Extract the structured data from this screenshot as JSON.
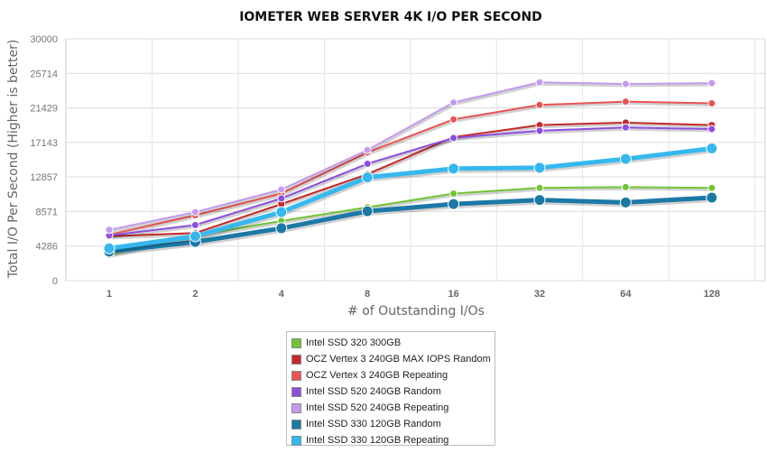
{
  "chart_data": {
    "type": "line",
    "title": "IOMETER WEB SERVER 4K I/O PER SECOND",
    "xlabel": "# of Outstanding I/Os",
    "ylabel": "Total I/O Per Second (Higher is better)",
    "categories": [
      "1",
      "2",
      "4",
      "8",
      "16",
      "32",
      "64",
      "128"
    ],
    "yticks": [
      "0",
      "4286",
      "8571",
      "12857",
      "17143",
      "21429",
      "25714",
      "30000"
    ],
    "ylim": [
      0,
      30000
    ],
    "grid": true,
    "legend_position": "bottom",
    "series": [
      {
        "name": "Intel SSD 320 300GB",
        "color": "#72c434",
        "emphasis": false,
        "values": [
          3200,
          5600,
          7400,
          9100,
          10800,
          11500,
          11600,
          11500
        ]
      },
      {
        "name": "OCZ Vertex 3 240GB MAX IOPS Random",
        "color": "#c62828",
        "emphasis": false,
        "values": [
          5500,
          5900,
          9500,
          13200,
          17800,
          19300,
          19600,
          19300
        ]
      },
      {
        "name": "OCZ Vertex 3 240GB Repeating",
        "color": "#ea5453",
        "emphasis": false,
        "values": [
          5700,
          8100,
          10800,
          15900,
          20000,
          21800,
          22200,
          22000
        ]
      },
      {
        "name": "Intel SSD 520 240GB Random",
        "color": "#8b4fe0",
        "emphasis": false,
        "values": [
          5600,
          6900,
          10200,
          14500,
          17700,
          18600,
          19000,
          18800
        ]
      },
      {
        "name": "Intel SSD 520 240GB Repeating",
        "color": "#c49af0",
        "emphasis": false,
        "values": [
          6300,
          8500,
          11300,
          16200,
          22100,
          24600,
          24400,
          24500
        ]
      },
      {
        "name": "Intel SSD 330 120GB Random",
        "color": "#1c79a6",
        "emphasis": true,
        "values": [
          3600,
          4800,
          6500,
          8600,
          9500,
          10000,
          9700,
          10300
        ]
      },
      {
        "name": "Intel SSD 330 120GB Repeating",
        "color": "#36b8ef",
        "emphasis": true,
        "values": [
          4000,
          5500,
          8500,
          12800,
          13900,
          14000,
          15100,
          16400
        ]
      }
    ]
  }
}
